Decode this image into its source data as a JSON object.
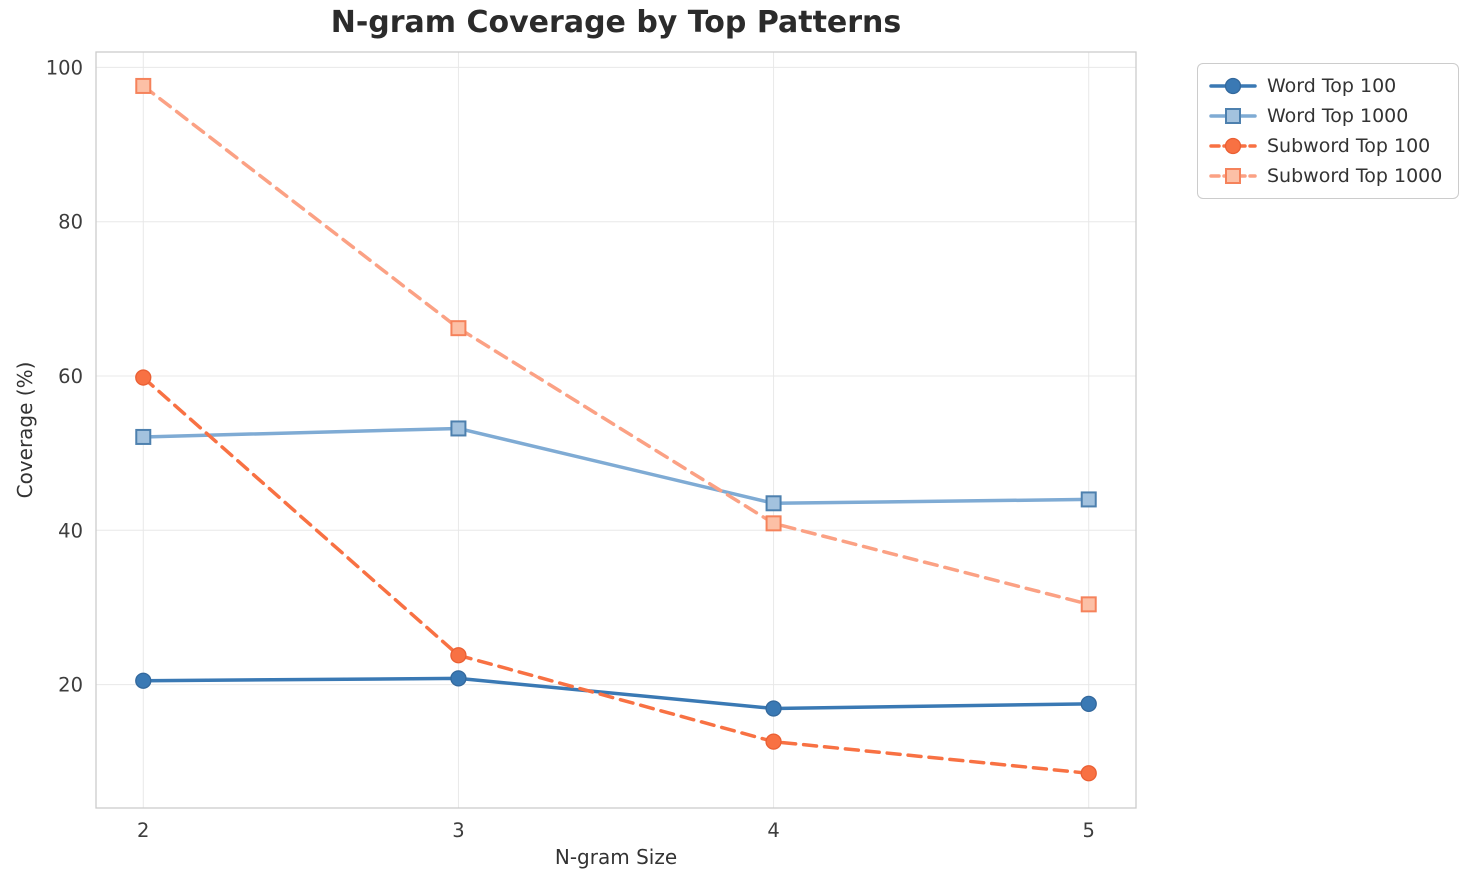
{
  "accent_colors": {
    "word_top_100": "#3a79b4",
    "word_top_1000": "#7fabd4",
    "subword_top_100": "#f87143",
    "subword_top_1000": "#fba184",
    "grid": "#e8e8e8",
    "spine": "#cccccc",
    "background": "#ffffff"
  },
  "chart_data": {
    "type": "line",
    "title": "N-gram Coverage by Top Patterns",
    "xlabel": "N-gram Size",
    "ylabel": "Coverage (%)",
    "x": [
      2,
      3,
      4,
      5
    ],
    "xticks": [
      "2",
      "3",
      "4",
      "5"
    ],
    "yticks": [
      20,
      40,
      60,
      80,
      100
    ],
    "xlim": [
      1.85,
      5.15
    ],
    "ylim": [
      4,
      102
    ],
    "grid": true,
    "legend_position": "outside-upper-right",
    "series": [
      {
        "name": "Word Top 100",
        "values": [
          20.5,
          20.8,
          16.9,
          17.5
        ],
        "color": "#3a79b4",
        "linestyle": "solid",
        "marker": "circle",
        "marker_fill": "#3a79b4",
        "marker_edge": "#33689c"
      },
      {
        "name": "Word Top 1000",
        "values": [
          52.1,
          53.2,
          43.5,
          44.0
        ],
        "color": "#7fabd4",
        "linestyle": "solid",
        "marker": "square",
        "marker_fill": "#a3c2de",
        "marker_edge": "#4d80ae"
      },
      {
        "name": "Subword Top 100",
        "values": [
          59.8,
          23.8,
          12.6,
          8.5
        ],
        "color": "#f87143",
        "linestyle": "dashed",
        "marker": "circle",
        "marker_fill": "#f87143",
        "marker_edge": "#ea5f33"
      },
      {
        "name": "Subword Top 1000",
        "values": [
          97.6,
          66.2,
          40.9,
          30.4
        ],
        "color": "#fba184",
        "linestyle": "dashed",
        "marker": "square",
        "marker_fill": "#fcc0a6",
        "marker_edge": "#f5825b"
      }
    ]
  }
}
